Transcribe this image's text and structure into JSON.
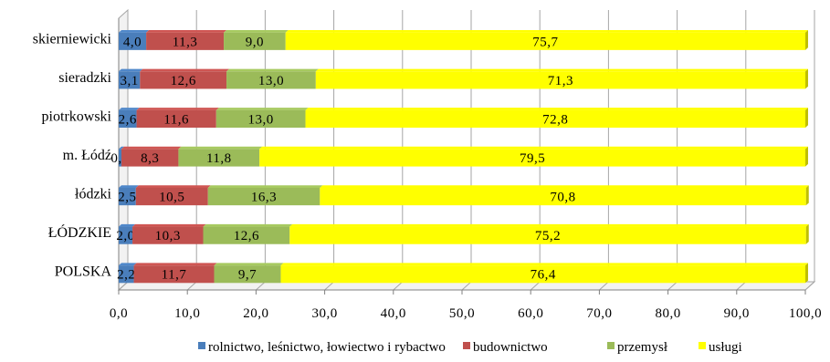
{
  "chart_data": {
    "type": "bar",
    "orientation": "horizontal",
    "stacked": true,
    "categories": [
      "skierniewicki",
      "sieradzki",
      "piotrkowski",
      "m. Łódź",
      "łódzki",
      "ŁÓDZKIE",
      "POLSKA"
    ],
    "series": [
      {
        "name": "rolnictwo, leśnictwo, łowiectwo i rybactwo",
        "color": "#4a7ebb",
        "values": [
          4.0,
          3.1,
          2.6,
          0.4,
          2.5,
          2.0,
          2.2
        ],
        "labels": [
          "4,0",
          "3,1",
          "2,6",
          "0,4",
          "2,5",
          "2,0",
          "2,2"
        ]
      },
      {
        "name": "budownictwo",
        "color": "#c0504d",
        "values": [
          11.3,
          12.6,
          11.6,
          8.3,
          10.5,
          10.3,
          11.7
        ],
        "labels": [
          "11,3",
          "12,6",
          "11,6",
          "8,3",
          "10,5",
          "10,3",
          "11,7"
        ]
      },
      {
        "name": "przemysł",
        "color": "#9bbb59",
        "values": [
          9.0,
          13.0,
          13.0,
          11.8,
          16.3,
          12.6,
          9.7
        ],
        "labels": [
          "9,0",
          "13,0",
          "13,0",
          "11,8",
          "16,3",
          "12,6",
          "9,7"
        ]
      },
      {
        "name": "usługi",
        "color": "#ffff00",
        "values": [
          75.7,
          71.3,
          72.8,
          79.5,
          70.8,
          75.2,
          76.4
        ],
        "labels": [
          "75,7",
          "71,3",
          "72,8",
          "79,5",
          "70,8",
          "75,2",
          "76,4"
        ]
      }
    ],
    "xlim": [
      0,
      100
    ],
    "xticks": [
      "0,0",
      "10,0",
      "20,0",
      "30,0",
      "40,0",
      "50,0",
      "60,0",
      "70,0",
      "80,0",
      "90,0",
      "100,0"
    ],
    "grid": true,
    "legend_position": "bottom"
  }
}
